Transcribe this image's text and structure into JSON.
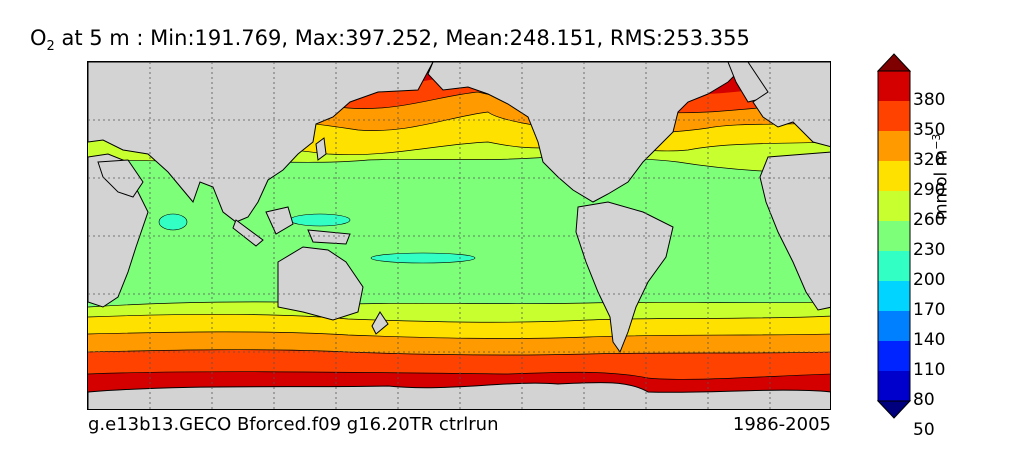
{
  "title": {
    "variable": "O",
    "subscript": "2",
    "text": " at 5 m : Min:191.769, Max:397.252, Mean:248.151, RMS:253.355"
  },
  "caption": {
    "left": "g.e13b13.GECO Bforced.f09 g16.20TR ctrlrun",
    "right": "1986-2005"
  },
  "colorbar": {
    "unit_base": "mmol m",
    "unit_exp": "−3",
    "ticks": [
      "380",
      "350",
      "320",
      "290",
      "260",
      "230",
      "200",
      "170",
      "140",
      "110",
      "80",
      "50"
    ],
    "colors": [
      "#7f0000",
      "#d40000",
      "#ff4200",
      "#ff9a00",
      "#ffe100",
      "#c8ff2e",
      "#7dff7a",
      "#32ffc3",
      "#00d4ff",
      "#0080ff",
      "#0024ff",
      "#0000cd",
      "#00007f"
    ],
    "extend": "both"
  },
  "map": {
    "projection": "cylindrical, centered on Pacific",
    "land_color": "#d3d3d3",
    "grid": "dotted"
  }
}
